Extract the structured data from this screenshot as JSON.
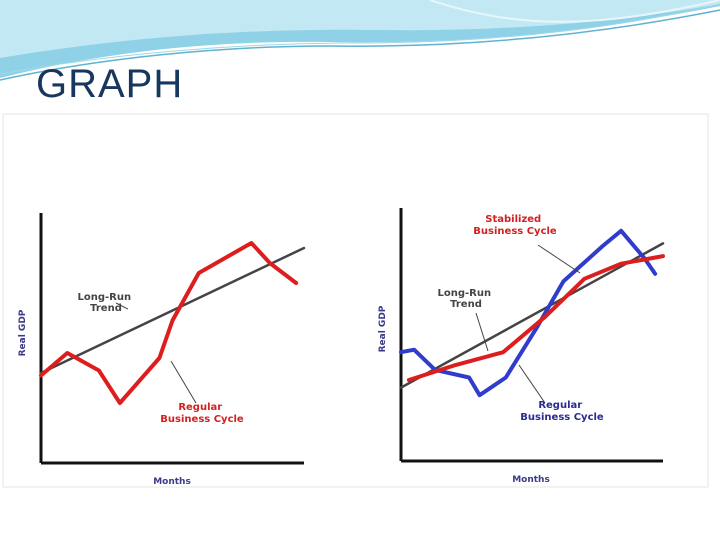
{
  "slide": {
    "title": "GRAPH"
  },
  "colors": {
    "title": "#17375e",
    "trend": "#444444",
    "regular": "#dd1e1e",
    "blue": "#2f3ccc",
    "banner": "#7cc7e0",
    "axis": "#111111"
  },
  "chart_data": [
    {
      "type": "line",
      "xlabel": "Months",
      "ylabel": "Real GDP",
      "xlim": [
        0,
        10
      ],
      "ylim": [
        0,
        10
      ],
      "grid": false,
      "series": [
        {
          "name": "Long-Run Trend",
          "color": "#444444",
          "x": [
            0,
            10
          ],
          "y": [
            3.6,
            8.6
          ]
        },
        {
          "name": "Regular Business Cycle",
          "color": "#dd1e1e",
          "x": [
            0,
            1,
            2.2,
            3,
            4.5,
            5,
            6,
            8,
            8.7,
            9.7
          ],
          "y": [
            3.5,
            4.4,
            3.7,
            2.4,
            4.2,
            5.7,
            7.6,
            8.8,
            8,
            7.2
          ]
        }
      ],
      "annotations": [
        {
          "lines": [
            "Long-Run",
            "Trend"
          ],
          "style": "gray"
        },
        {
          "lines": [
            "Regular",
            "Business Cycle"
          ],
          "style": "red"
        }
      ]
    },
    {
      "type": "line",
      "xlabel": "Months",
      "ylabel": "Real GDP",
      "xlim": [
        0,
        10
      ],
      "ylim": [
        0,
        10
      ],
      "grid": false,
      "series": [
        {
          "name": "Long-Run Trend",
          "color": "#444444",
          "x": [
            0,
            10
          ],
          "y": [
            2.9,
            8.6
          ]
        },
        {
          "name": "Regular Business Cycle",
          "color": "#2f3ccc",
          "x": [
            0,
            0.5,
            1.3,
            2.6,
            3,
            4,
            5.2,
            6.2,
            7.7,
            8.4,
            9.3,
            9.7
          ],
          "y": [
            4.3,
            4.4,
            3.6,
            3.3,
            2.6,
            3.3,
            5.3,
            7.1,
            8.5,
            9.1,
            8,
            7.4
          ]
        },
        {
          "name": "Stabilized Business Cycle",
          "color": "#dd1e1e",
          "x": [
            0.3,
            2.1,
            3.9,
            5.5,
            7,
            8.4,
            10
          ],
          "y": [
            3.2,
            3.8,
            4.3,
            5.7,
            7.2,
            7.8,
            8.1
          ]
        }
      ],
      "annotations": [
        {
          "lines": [
            "Stabilized",
            "Business Cycle"
          ],
          "style": "red"
        },
        {
          "lines": [
            "Long-Run",
            "Trend"
          ],
          "style": "gray"
        },
        {
          "lines": [
            "Regular",
            "Business Cycle"
          ],
          "style": "navy"
        }
      ]
    }
  ]
}
